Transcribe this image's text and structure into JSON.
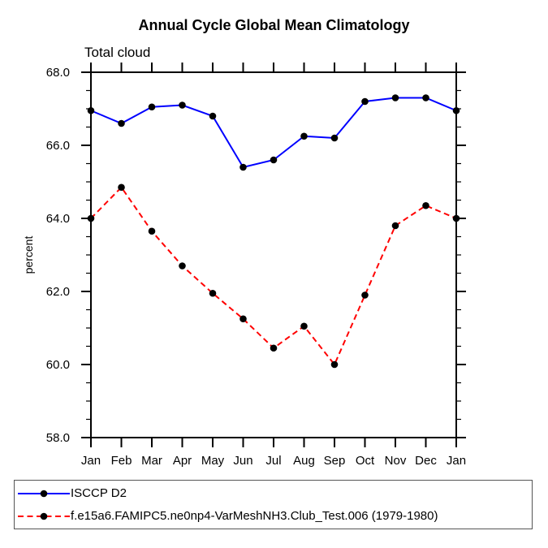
{
  "title": "Annual Cycle Global Mean Climatology",
  "subtitle": "Total cloud",
  "chart_data": {
    "type": "line",
    "x_categories": [
      "Jan",
      "Feb",
      "Mar",
      "Apr",
      "May",
      "Jun",
      "Jul",
      "Aug",
      "Sep",
      "Oct",
      "Nov",
      "Dec",
      "Jan"
    ],
    "ylabel": "percent",
    "ylim": [
      58.0,
      68.0
    ],
    "ytick_major_step": 2.0,
    "ytick_minor_step": 0.5,
    "ytick_label_format": "one-decimal",
    "grid": false,
    "legend_position": "bottom-left-box",
    "marker": {
      "shape": "filled-circle",
      "color": "#000000"
    },
    "axis_color": "#000000",
    "series": [
      {
        "name": "ISCCP D2",
        "color": "#0000ff",
        "line_style": "solid",
        "values": [
          66.95,
          66.6,
          67.05,
          67.1,
          66.8,
          65.4,
          65.6,
          66.25,
          66.2,
          67.2,
          67.3,
          67.3,
          66.95
        ]
      },
      {
        "name": "f.e15a6.FAMIPC5.ne0np4-VarMeshNH3.Club_Test.006 (1979-1980)",
        "color": "#ff0000",
        "line_style": "dashed",
        "values": [
          64.0,
          64.85,
          63.65,
          62.7,
          61.95,
          61.25,
          60.45,
          61.05,
          60.0,
          61.9,
          63.8,
          64.35,
          64.0
        ]
      }
    ]
  }
}
